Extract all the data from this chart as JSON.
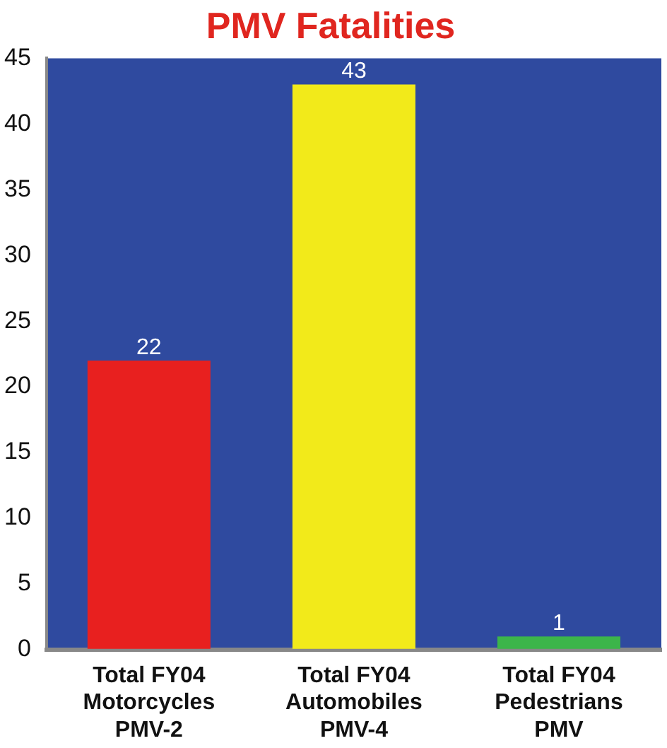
{
  "chart_data": {
    "type": "bar",
    "title": "PMV Fatalities",
    "categories": [
      "Total FY04\nMotorcycles\nPMV-2",
      "Total FY04\nAutomobiles\nPMV-4",
      "Total FY04\nPedestrians\nPMV"
    ],
    "values": [
      22,
      43,
      1
    ],
    "colors": [
      "#e8201f",
      "#f2ea1a",
      "#3cb54a"
    ],
    "ylim": [
      0,
      45
    ],
    "yticks": [
      0,
      5,
      10,
      15,
      20,
      25,
      30,
      35,
      40,
      45
    ],
    "grid": false,
    "data_labels": true
  }
}
